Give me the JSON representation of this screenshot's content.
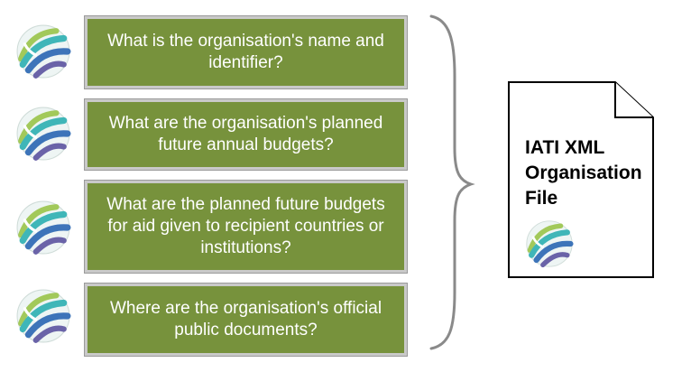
{
  "questions": [
    "What is the organisation's name and identifier?",
    "What are the organisation's planned future annual budgets?",
    "What are the planned future budgets for aid given to recipient countries or institutions?",
    "Where are the organisation's official public documents?"
  ],
  "file": {
    "title": "IATI XML Organisation File"
  },
  "colors": {
    "box_fill": "#77923c",
    "box_border": "#c9c9c9",
    "logo_teal": "#3fb6b8",
    "logo_blue": "#3d74b9",
    "logo_purple": "#6a63a8",
    "logo_green": "#a2c95a"
  },
  "icons": [
    "iati-globe-logo-icon",
    "curly-brace-icon",
    "document-icon"
  ]
}
